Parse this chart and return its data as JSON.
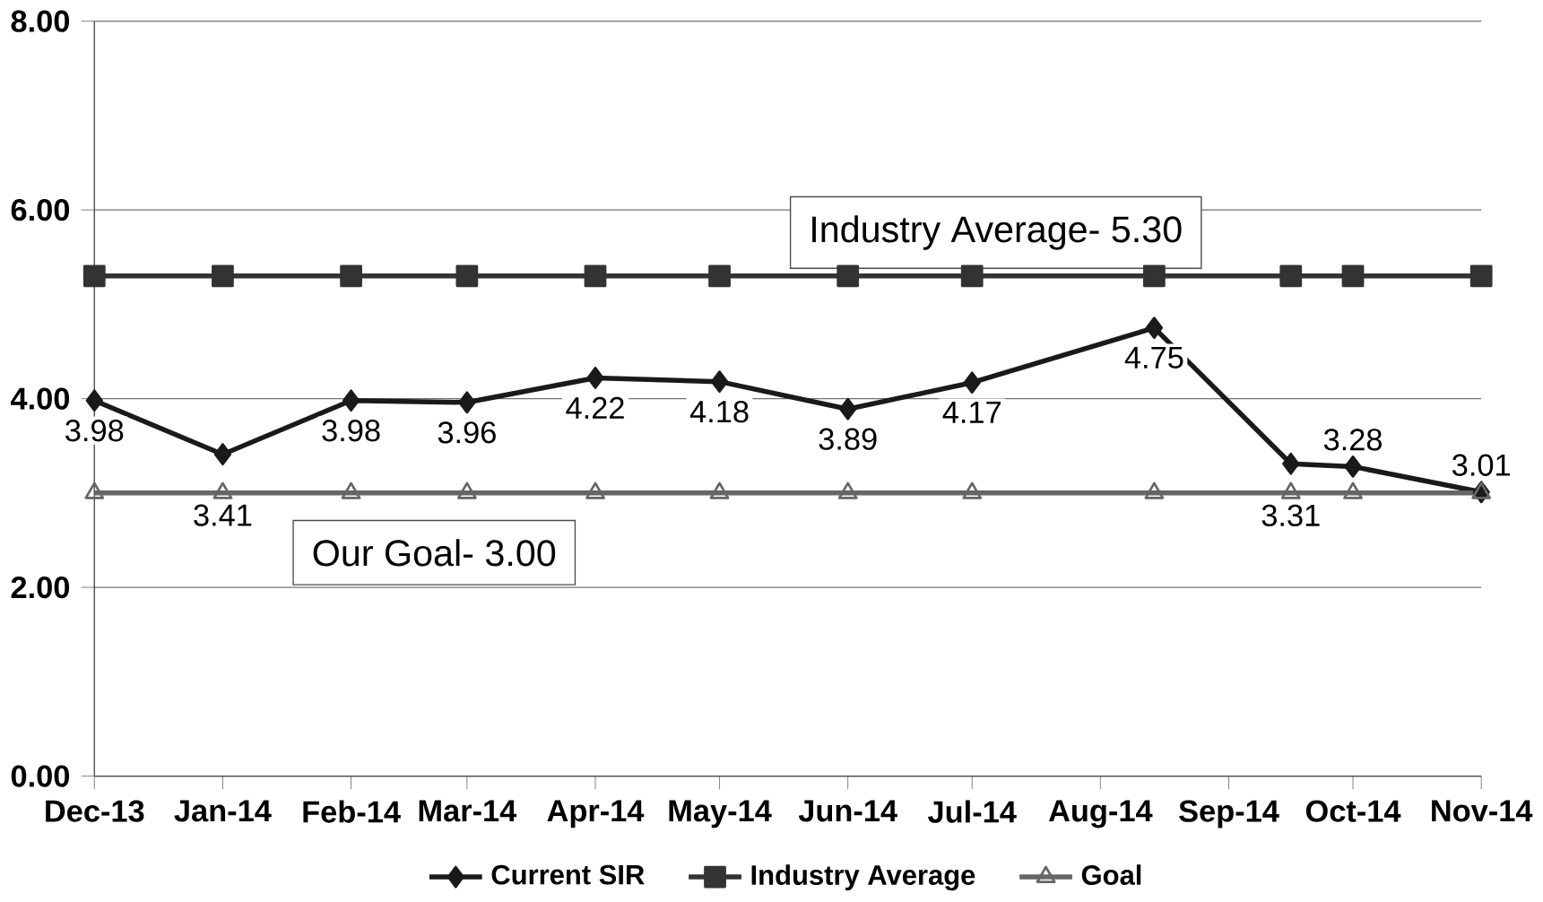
{
  "chart_data": {
    "type": "line",
    "x": [
      "2013-12-01",
      "2014-01-01",
      "2014-02-01",
      "2014-03-01",
      "2014-04-01",
      "2014-05-01",
      "2014-06-01",
      "2014-07-01",
      "2014-08-14",
      "2014-09-16",
      "2014-10-01",
      "2014-11-01"
    ],
    "series": [
      {
        "name": "Current SIR",
        "color": "#1a1a1a",
        "marker": "diamond",
        "values": [
          3.98,
          3.41,
          3.98,
          3.96,
          4.22,
          4.18,
          3.89,
          4.17,
          4.75,
          3.31,
          3.28,
          3.01
        ],
        "value_labels": [
          "3.98",
          "3.41",
          "3.98",
          "3.96",
          "4.22",
          "4.18",
          "3.89",
          "4.17",
          "4.75",
          "3.31",
          "3.28",
          "3.01"
        ]
      },
      {
        "name": "Industry Average",
        "color": "#333333",
        "marker": "square",
        "values": [
          5.3,
          5.3,
          5.3,
          5.3,
          5.3,
          5.3,
          5.3,
          5.3,
          5.3,
          5.3,
          5.3,
          5.3
        ]
      },
      {
        "name": "Goal",
        "color": "#666666",
        "marker": "triangle",
        "values": [
          3.0,
          3.0,
          3.0,
          3.0,
          3.0,
          3.0,
          3.0,
          3.0,
          3.0,
          3.0,
          3.0,
          3.0
        ]
      }
    ],
    "xlim": [
      "2013-12-01",
      "2014-11-01"
    ],
    "xticks": [
      {
        "value": "2013-12-01",
        "label": "Dec-13"
      },
      {
        "value": "2014-01-01",
        "label": "Jan-14"
      },
      {
        "value": "2014-02-01",
        "label": "Feb-14"
      },
      {
        "value": "2014-03-01",
        "label": "Mar-14"
      },
      {
        "value": "2014-04-01",
        "label": "Apr-14"
      },
      {
        "value": "2014-05-01",
        "label": "May-14"
      },
      {
        "value": "2014-06-01",
        "label": "Jun-14"
      },
      {
        "value": "2014-07-01",
        "label": "Jul-14"
      },
      {
        "value": "2014-08-01",
        "label": "Aug-14"
      },
      {
        "value": "2014-09-01",
        "label": "Sep-14"
      },
      {
        "value": "2014-10-01",
        "label": "Oct-14"
      },
      {
        "value": "2014-11-01",
        "label": "Nov-14"
      }
    ],
    "ylim": [
      0,
      8
    ],
    "yticks": [
      {
        "value": 0,
        "label": "0.00"
      },
      {
        "value": 2,
        "label": "2.00"
      },
      {
        "value": 4,
        "label": "4.00"
      },
      {
        "value": 6,
        "label": "6.00"
      },
      {
        "value": 8,
        "label": "8.00"
      }
    ],
    "annotations": [
      "Industry Average- 5.30",
      "Our Goal- 3.00"
    ],
    "grid": "y",
    "legend": "bottom",
    "line_style": "solid"
  }
}
